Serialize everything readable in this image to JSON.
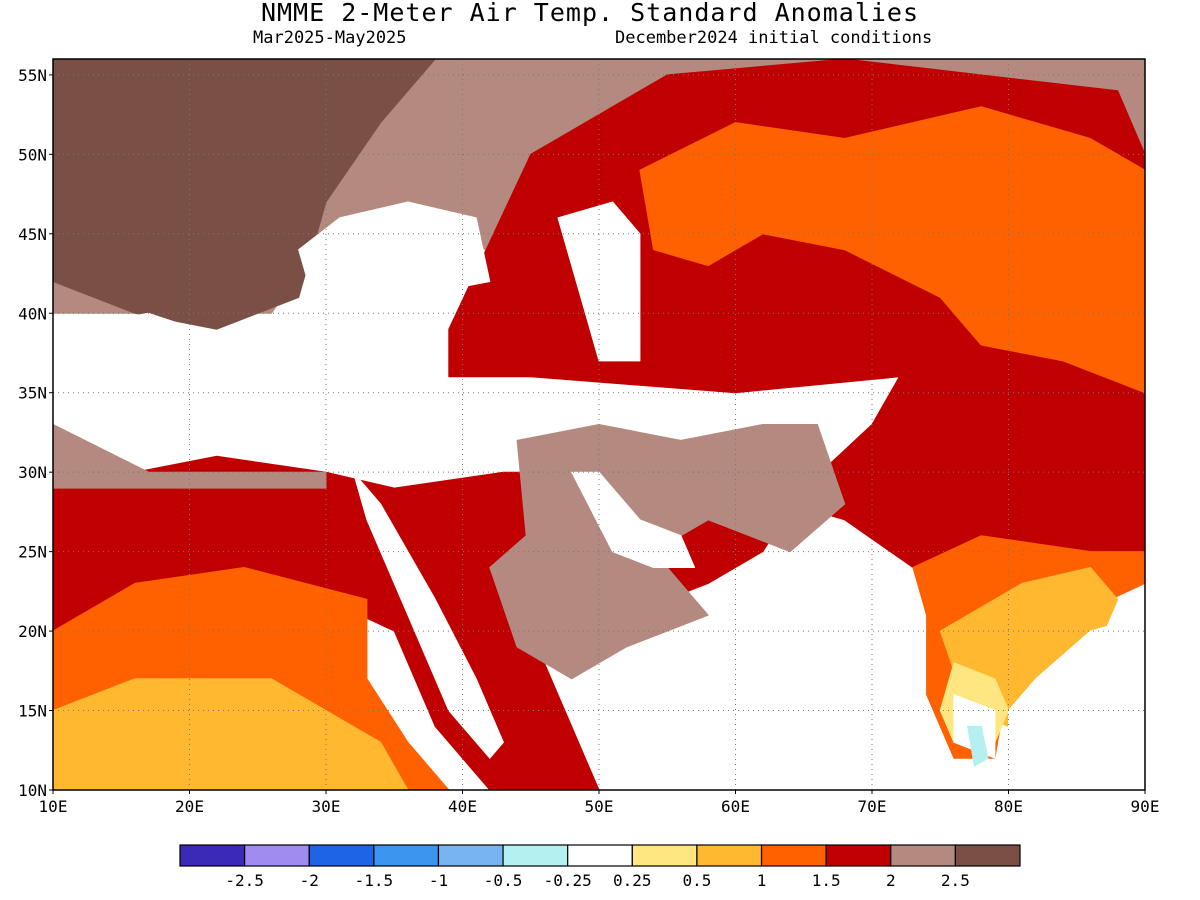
{
  "header": {
    "title": "NMME 2-Meter Air Temp. Standard Anomalies",
    "period": "Mar2025-May2025",
    "init": "December2024 initial conditions"
  },
  "map": {
    "lon_range": [
      10,
      90
    ],
    "lat_range": [
      10,
      56
    ],
    "lat_ticks": [
      {
        "value": 10,
        "label": "10N"
      },
      {
        "value": 15,
        "label": "15N"
      },
      {
        "value": 20,
        "label": "20N"
      },
      {
        "value": 25,
        "label": "25N"
      },
      {
        "value": 30,
        "label": "30N"
      },
      {
        "value": 35,
        "label": "35N"
      },
      {
        "value": 40,
        "label": "40N"
      },
      {
        "value": 45,
        "label": "45N"
      },
      {
        "value": 50,
        "label": "50N"
      },
      {
        "value": 55,
        "label": "55N"
      }
    ],
    "lon_ticks": [
      {
        "value": 10,
        "label": "10E"
      },
      {
        "value": 20,
        "label": "20E"
      },
      {
        "value": 30,
        "label": "30E"
      },
      {
        "value": 40,
        "label": "40E"
      },
      {
        "value": 50,
        "label": "50E"
      },
      {
        "value": 60,
        "label": "60E"
      },
      {
        "value": 70,
        "label": "70E"
      },
      {
        "value": 80,
        "label": "80E"
      },
      {
        "value": 90,
        "label": "90E"
      }
    ],
    "regions": [
      {
        "name": "2-2.5",
        "color": "#b48a80",
        "pts": [
          [
            10,
            46
          ],
          [
            17,
            56
          ],
          [
            90,
            56
          ],
          [
            90,
            40
          ],
          [
            72,
            40
          ],
          [
            60,
            43
          ],
          [
            45,
            42
          ],
          [
            40,
            45
          ],
          [
            30,
            45
          ],
          [
            26,
            40
          ],
          [
            10,
            40
          ]
        ]
      },
      {
        "name": "1.5-2",
        "color": "#c00000",
        "pts": [
          [
            39,
            39
          ],
          [
            45,
            50
          ],
          [
            55,
            55
          ],
          [
            68,
            56
          ],
          [
            88,
            54
          ],
          [
            90,
            50
          ],
          [
            90,
            25
          ],
          [
            85,
            23
          ],
          [
            78,
            25
          ],
          [
            73,
            24
          ],
          [
            68,
            27
          ],
          [
            60,
            29
          ],
          [
            50,
            30
          ],
          [
            43,
            30
          ],
          [
            35,
            29
          ],
          [
            30,
            30
          ],
          [
            22,
            31
          ],
          [
            10,
            29
          ],
          [
            10,
            19
          ],
          [
            20,
            21
          ],
          [
            30,
            22
          ],
          [
            35,
            20
          ],
          [
            38,
            14
          ],
          [
            42,
            10
          ],
          [
            50,
            10
          ],
          [
            46,
            18
          ],
          [
            52,
            21
          ],
          [
            58,
            23
          ],
          [
            62,
            25
          ],
          [
            65,
            29
          ],
          [
            70,
            33
          ],
          [
            72,
            36
          ],
          [
            60,
            35
          ],
          [
            45,
            36
          ],
          [
            39,
            36
          ]
        ]
      },
      {
        "name": "1-1.5",
        "color": "#ff6000",
        "pts": [
          [
            53,
            49
          ],
          [
            60,
            52
          ],
          [
            68,
            51
          ],
          [
            78,
            53
          ],
          [
            86,
            51
          ],
          [
            90,
            49
          ],
          [
            90,
            35
          ],
          [
            84,
            37
          ],
          [
            78,
            38
          ],
          [
            75,
            41
          ],
          [
            68,
            44
          ],
          [
            62,
            45
          ],
          [
            58,
            43
          ],
          [
            54,
            44
          ]
        ]
      },
      {
        "name": "1-1.5",
        "color": "#ff6000",
        "pts": [
          [
            73,
            24
          ],
          [
            78,
            26
          ],
          [
            86,
            25
          ],
          [
            90,
            25
          ],
          [
            90,
            23
          ],
          [
            85,
            21
          ],
          [
            80,
            17
          ],
          [
            79,
            12
          ],
          [
            76,
            12
          ],
          [
            74,
            16
          ],
          [
            74,
            21
          ]
        ]
      },
      {
        "name": "1-1.5",
        "color": "#ff6000",
        "pts": [
          [
            10,
            20
          ],
          [
            16,
            23
          ],
          [
            24,
            24
          ],
          [
            33,
            22
          ],
          [
            33,
            17
          ],
          [
            36,
            13
          ],
          [
            39,
            10
          ],
          [
            10,
            10
          ]
        ]
      },
      {
        "name": "0.5-1",
        "color": "#ffb830",
        "pts": [
          [
            10,
            15
          ],
          [
            16,
            17
          ],
          [
            26,
            17
          ],
          [
            30,
            15
          ],
          [
            34,
            13
          ],
          [
            36,
            10
          ],
          [
            10,
            10
          ]
        ]
      },
      {
        "name": "0.5-1",
        "color": "#ffb830",
        "pts": [
          [
            75,
            20
          ],
          [
            81,
            23
          ],
          [
            86,
            24
          ],
          [
            88,
            22
          ],
          [
            86,
            18
          ],
          [
            82,
            16
          ],
          [
            80,
            14
          ],
          [
            77,
            15
          ]
        ]
      },
      {
        "name": "0.25-0.5",
        "color": "#ffe680",
        "pts": [
          [
            76,
            18
          ],
          [
            79,
            17
          ],
          [
            80,
            15
          ],
          [
            79,
            13
          ],
          [
            76,
            13
          ],
          [
            75,
            15
          ]
        ]
      },
      {
        "name": "-0.25-0.25",
        "color": "#ffffff",
        "pts": [
          [
            76,
            16
          ],
          [
            79,
            15
          ],
          [
            79,
            12
          ],
          [
            76,
            13
          ]
        ]
      },
      {
        "name": "-0.5--0.25",
        "color": "#b4f0f0",
        "pts": [
          [
            77,
            14
          ],
          [
            78,
            14
          ],
          [
            78.5,
            12
          ],
          [
            77.5,
            11.5
          ]
        ]
      },
      {
        "name": "2-2.5",
        "color": "#b48a80",
        "pts": [
          [
            44,
            32
          ],
          [
            50,
            33
          ],
          [
            56,
            32
          ],
          [
            62,
            33
          ],
          [
            66,
            33
          ],
          [
            68,
            28
          ],
          [
            64,
            25
          ],
          [
            58,
            27
          ],
          [
            52,
            24
          ],
          [
            45,
            23
          ]
        ]
      },
      {
        "name": "2-2.5",
        "color": "#b48a80",
        "pts": [
          [
            10,
            33
          ],
          [
            17,
            30
          ],
          [
            25,
            30
          ],
          [
            30,
            30
          ],
          [
            30,
            29
          ],
          [
            22,
            29
          ],
          [
            10,
            29
          ]
        ]
      },
      {
        "name": "2-2.5",
        "color": "#b48a80",
        "pts": [
          [
            42,
            24
          ],
          [
            46,
            27
          ],
          [
            52,
            27
          ],
          [
            58,
            21
          ],
          [
            52,
            19
          ],
          [
            48,
            17
          ],
          [
            44,
            19
          ]
        ]
      },
      {
        "name": "2.5+",
        "color": "#7a5046",
        "pts": [
          [
            10,
            42
          ],
          [
            10,
            56
          ],
          [
            38,
            56
          ],
          [
            34,
            52
          ],
          [
            30,
            47
          ],
          [
            28,
            41
          ],
          [
            22,
            39
          ],
          [
            16,
            40
          ]
        ]
      },
      {
        "name": "-0.25-0.25 (sea)",
        "color": "#ffffff",
        "pts": [
          [
            10,
            39
          ],
          [
            17,
            40
          ],
          [
            24,
            38
          ],
          [
            28,
            37
          ],
          [
            34,
            37
          ],
          [
            36,
            35
          ],
          [
            36,
            31
          ],
          [
            32,
            31
          ],
          [
            25,
            32
          ],
          [
            15,
            33
          ],
          [
            10,
            34
          ]
        ]
      },
      {
        "name": "-0.25-0.25 (black sea)",
        "color": "#ffffff",
        "pts": [
          [
            28,
            44
          ],
          [
            31,
            46
          ],
          [
            36,
            47
          ],
          [
            41,
            46
          ],
          [
            42,
            42
          ],
          [
            36,
            41
          ],
          [
            29,
            41
          ]
        ]
      },
      {
        "name": "-0.25-0.25 (caspian)",
        "color": "#ffffff",
        "pts": [
          [
            47,
            46
          ],
          [
            51,
            47
          ],
          [
            53,
            45
          ],
          [
            53,
            37
          ],
          [
            50,
            37
          ],
          [
            49,
            40
          ],
          [
            48,
            43
          ]
        ]
      },
      {
        "name": "-0.25-0.25 (red sea)",
        "color": "#ffffff",
        "pts": [
          [
            32,
            30
          ],
          [
            34,
            28
          ],
          [
            38,
            22
          ],
          [
            41,
            17
          ],
          [
            43,
            13
          ],
          [
            42,
            12
          ],
          [
            39,
            15
          ],
          [
            36,
            21
          ],
          [
            33,
            27
          ]
        ]
      },
      {
        "name": "-0.25-0.25 (gulf)",
        "color": "#ffffff",
        "pts": [
          [
            48,
            30
          ],
          [
            50,
            30
          ],
          [
            53,
            27
          ],
          [
            56,
            26
          ],
          [
            57,
            24
          ],
          [
            54,
            24
          ],
          [
            51,
            25
          ]
        ]
      },
      {
        "name": "-0.25-0.25 (arabian sea)",
        "color": "#ffffff",
        "pts": [
          [
            52,
            14
          ],
          [
            58,
            20
          ],
          [
            62,
            24
          ],
          [
            67,
            25
          ],
          [
            72,
            22
          ],
          [
            73,
            16
          ],
          [
            76,
            10
          ],
          [
            52,
            10
          ]
        ]
      },
      {
        "name": "-0.25-0.25 (bay)",
        "color": "#ffffff",
        "pts": [
          [
            80,
            10
          ],
          [
            80,
            15
          ],
          [
            82,
            17
          ],
          [
            86,
            20
          ],
          [
            90,
            21
          ],
          [
            90,
            10
          ]
        ]
      }
    ]
  },
  "legend": {
    "bins": [
      {
        "color": "#3a2ab5"
      },
      {
        "color": "#a08cf0"
      },
      {
        "color": "#1e64e6"
      },
      {
        "color": "#3c96f0"
      },
      {
        "color": "#78b4f0"
      },
      {
        "color": "#b4f0f0"
      },
      {
        "color": "#ffffff"
      },
      {
        "color": "#ffe680"
      },
      {
        "color": "#ffb830"
      },
      {
        "color": "#ff6000"
      },
      {
        "color": "#c00000"
      },
      {
        "color": "#b48a80"
      },
      {
        "color": "#7a5046"
      }
    ],
    "labels": [
      "-2.5",
      "-2",
      "-1.5",
      "-1",
      "-0.5",
      "-0.25",
      "0.25",
      "0.5",
      "1",
      "1.5",
      "2",
      "2.5"
    ]
  }
}
